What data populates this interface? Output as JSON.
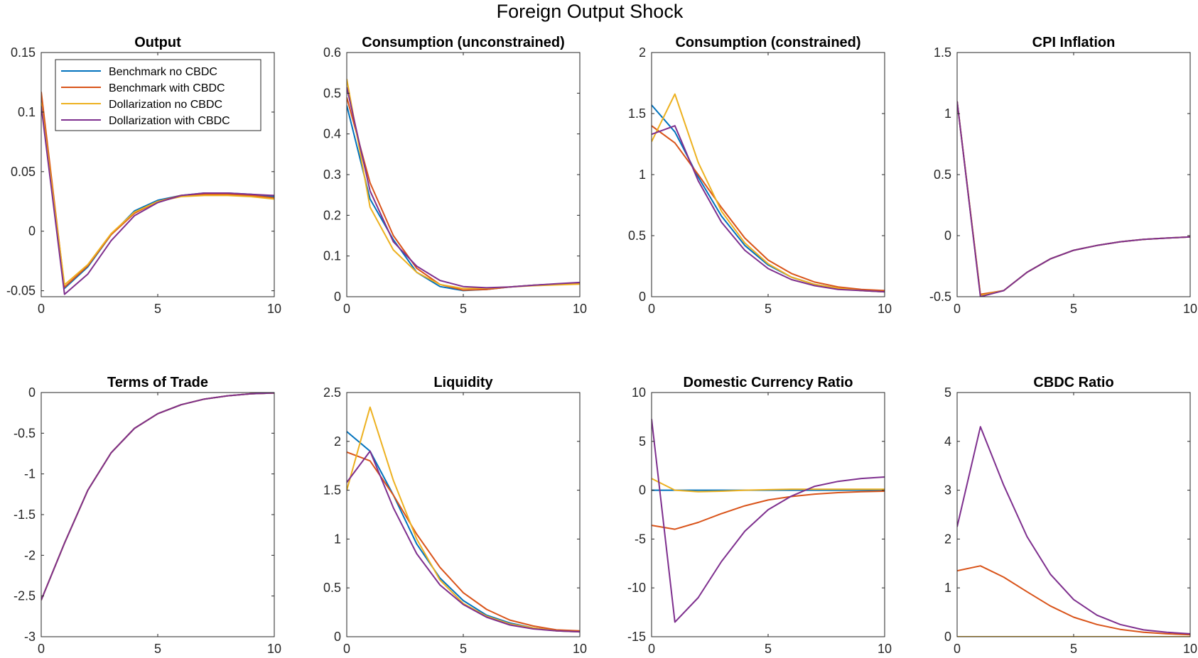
{
  "figure": {
    "title": "Foreign Output Shock"
  },
  "legend": {
    "entries": [
      "Benchmark no CBDC",
      "Benchmark with CBDC",
      "Dollarization no CBDC",
      "Dollarization with CBDC"
    ]
  },
  "series_colors": [
    "#0072BD",
    "#D95319",
    "#EDB120",
    "#7E2F8E"
  ],
  "chart_data": [
    {
      "type": "line",
      "title": "Output",
      "x": [
        0,
        1,
        2,
        3,
        4,
        5,
        6,
        7,
        8,
        9,
        10
      ],
      "xlim": [
        0,
        10
      ],
      "xticks": [
        0,
        5,
        10
      ],
      "ylim": [
        -0.055,
        0.15
      ],
      "yticks": [
        -0.05,
        0,
        0.05,
        0.1,
        0.15
      ],
      "ytick_labels": [
        "-0.05",
        "0",
        "0.05",
        "0.1",
        "0.15"
      ],
      "legend": "top-left",
      "series": [
        {
          "name": "Benchmark no CBDC",
          "values": [
            0.11,
            -0.048,
            -0.03,
            -0.003,
            0.017,
            0.026,
            0.03,
            0.032,
            0.032,
            0.031,
            0.029
          ]
        },
        {
          "name": "Benchmark with CBDC",
          "values": [
            0.117,
            -0.047,
            -0.029,
            -0.003,
            0.015,
            0.025,
            0.03,
            0.031,
            0.031,
            0.03,
            0.028
          ]
        },
        {
          "name": "Dollarization no CBDC",
          "values": [
            0.108,
            -0.045,
            -0.028,
            -0.002,
            0.016,
            0.025,
            0.029,
            0.03,
            0.03,
            0.029,
            0.027
          ]
        },
        {
          "name": "Dollarization with CBDC",
          "values": [
            0.105,
            -0.053,
            -0.036,
            -0.008,
            0.013,
            0.024,
            0.03,
            0.032,
            0.032,
            0.031,
            0.03
          ]
        }
      ]
    },
    {
      "type": "line",
      "title": "Consumption (unconstrained)",
      "x": [
        0,
        1,
        2,
        3,
        4,
        5,
        6,
        7,
        8,
        9,
        10
      ],
      "xlim": [
        0,
        10
      ],
      "xticks": [
        0,
        5,
        10
      ],
      "ylim": [
        0,
        0.6
      ],
      "yticks": [
        0,
        0.1,
        0.2,
        0.3,
        0.4,
        0.5,
        0.6
      ],
      "ytick_labels": [
        "0",
        "0.1",
        "0.2",
        "0.3",
        "0.4",
        "0.5",
        "0.6"
      ],
      "series": [
        {
          "name": "Benchmark no CBDC",
          "values": [
            0.47,
            0.24,
            0.14,
            0.06,
            0.025,
            0.015,
            0.018,
            0.024,
            0.028,
            0.031,
            0.033
          ]
        },
        {
          "name": "Benchmark with CBDC",
          "values": [
            0.49,
            0.28,
            0.15,
            0.07,
            0.03,
            0.016,
            0.018,
            0.024,
            0.028,
            0.031,
            0.033
          ]
        },
        {
          "name": "Dollarization no CBDC",
          "values": [
            0.535,
            0.22,
            0.115,
            0.06,
            0.03,
            0.02,
            0.021,
            0.024,
            0.027,
            0.029,
            0.031
          ]
        },
        {
          "name": "Dollarization with CBDC",
          "values": [
            0.515,
            0.26,
            0.135,
            0.075,
            0.04,
            0.025,
            0.022,
            0.024,
            0.028,
            0.032,
            0.035
          ]
        }
      ]
    },
    {
      "type": "line",
      "title": "Consumption (constrained)",
      "x": [
        0,
        1,
        2,
        3,
        4,
        5,
        6,
        7,
        8,
        9,
        10
      ],
      "xlim": [
        0,
        10
      ],
      "xticks": [
        0,
        5,
        10
      ],
      "ylim": [
        0,
        2
      ],
      "yticks": [
        0,
        0.5,
        1,
        1.5,
        2
      ],
      "ytick_labels": [
        "0",
        "0.5",
        "1",
        "1.5",
        "2"
      ],
      "series": [
        {
          "name": "Benchmark no CBDC",
          "values": [
            1.57,
            1.35,
            0.98,
            0.66,
            0.42,
            0.26,
            0.16,
            0.1,
            0.07,
            0.05,
            0.04
          ]
        },
        {
          "name": "Benchmark with CBDC",
          "values": [
            1.4,
            1.26,
            1.0,
            0.73,
            0.48,
            0.3,
            0.19,
            0.12,
            0.08,
            0.06,
            0.05
          ]
        },
        {
          "name": "Dollarization no CBDC",
          "values": [
            1.27,
            1.66,
            1.1,
            0.7,
            0.44,
            0.27,
            0.16,
            0.1,
            0.07,
            0.05,
            0.04
          ]
        },
        {
          "name": "Dollarization with CBDC",
          "values": [
            1.33,
            1.4,
            0.95,
            0.61,
            0.38,
            0.23,
            0.14,
            0.09,
            0.06,
            0.05,
            0.04
          ]
        }
      ]
    },
    {
      "type": "line",
      "title": "CPI Inflation",
      "x": [
        0,
        1,
        2,
        3,
        4,
        5,
        6,
        7,
        8,
        9,
        10
      ],
      "xlim": [
        0,
        10
      ],
      "xticks": [
        0,
        5,
        10
      ],
      "ylim": [
        -0.5,
        1.5
      ],
      "yticks": [
        -0.5,
        0,
        0.5,
        1,
        1.5
      ],
      "ytick_labels": [
        "-0.5",
        "0",
        "0.5",
        "1",
        "1.5"
      ],
      "series": [
        {
          "name": "Benchmark no CBDC",
          "values": [
            1.1,
            -0.49,
            -0.45,
            -0.3,
            -0.19,
            -0.12,
            -0.08,
            -0.05,
            -0.03,
            -0.02,
            -0.01
          ]
        },
        {
          "name": "Benchmark with CBDC",
          "values": [
            1.1,
            -0.48,
            -0.45,
            -0.3,
            -0.19,
            -0.12,
            -0.08,
            -0.05,
            -0.03,
            -0.02,
            -0.01
          ]
        },
        {
          "name": "Dollarization no CBDC",
          "values": [
            1.1,
            -0.49,
            -0.45,
            -0.3,
            -0.19,
            -0.12,
            -0.08,
            -0.05,
            -0.03,
            -0.02,
            -0.01
          ]
        },
        {
          "name": "Dollarization with CBDC",
          "values": [
            1.1,
            -0.5,
            -0.45,
            -0.3,
            -0.19,
            -0.12,
            -0.08,
            -0.05,
            -0.03,
            -0.02,
            -0.01
          ]
        }
      ]
    },
    {
      "type": "line",
      "title": "Terms of Trade",
      "x": [
        0,
        1,
        2,
        3,
        4,
        5,
        6,
        7,
        8,
        9,
        10
      ],
      "xlim": [
        0,
        10
      ],
      "xticks": [
        0,
        5,
        10
      ],
      "ylim": [
        -3,
        0
      ],
      "yticks": [
        -3,
        -2.5,
        -2,
        -1.5,
        -1,
        -0.5,
        0
      ],
      "ytick_labels": [
        "-3",
        "-2.5",
        "-2",
        "-1.5",
        "-1",
        "-0.5",
        "0"
      ],
      "series": [
        {
          "name": "Benchmark no CBDC",
          "values": [
            -2.55,
            -1.85,
            -1.2,
            -0.74,
            -0.44,
            -0.26,
            -0.15,
            -0.08,
            -0.04,
            -0.015,
            -0.005
          ]
        },
        {
          "name": "Benchmark with CBDC",
          "values": [
            -2.55,
            -1.85,
            -1.2,
            -0.74,
            -0.44,
            -0.26,
            -0.15,
            -0.08,
            -0.04,
            -0.015,
            -0.005
          ]
        },
        {
          "name": "Dollarization no CBDC",
          "values": [
            -2.55,
            -1.85,
            -1.2,
            -0.74,
            -0.44,
            -0.26,
            -0.15,
            -0.08,
            -0.04,
            -0.015,
            -0.005
          ]
        },
        {
          "name": "Dollarization with CBDC",
          "values": [
            -2.55,
            -1.85,
            -1.2,
            -0.74,
            -0.44,
            -0.26,
            -0.15,
            -0.08,
            -0.04,
            -0.015,
            -0.005
          ]
        }
      ]
    },
    {
      "type": "line",
      "title": "Liquidity",
      "x": [
        0,
        1,
        2,
        3,
        4,
        5,
        6,
        7,
        8,
        9,
        10
      ],
      "xlim": [
        0,
        10
      ],
      "xticks": [
        0,
        5,
        10
      ],
      "ylim": [
        0,
        2.5
      ],
      "yticks": [
        0,
        0.5,
        1,
        1.5,
        2,
        2.5
      ],
      "ytick_labels": [
        "0",
        "0.5",
        "1",
        "1.5",
        "2",
        "2.5"
      ],
      "series": [
        {
          "name": "Benchmark no CBDC",
          "values": [
            2.1,
            1.9,
            1.45,
            0.95,
            0.6,
            0.37,
            0.22,
            0.14,
            0.09,
            0.06,
            0.05
          ]
        },
        {
          "name": "Benchmark with CBDC",
          "values": [
            1.89,
            1.8,
            1.45,
            1.05,
            0.71,
            0.45,
            0.28,
            0.17,
            0.11,
            0.07,
            0.06
          ]
        },
        {
          "name": "Dollarization no CBDC",
          "values": [
            1.5,
            2.35,
            1.6,
            1.0,
            0.58,
            0.34,
            0.21,
            0.13,
            0.09,
            0.06,
            0.05
          ]
        },
        {
          "name": "Dollarization with CBDC",
          "values": [
            1.58,
            1.9,
            1.32,
            0.85,
            0.53,
            0.33,
            0.2,
            0.12,
            0.08,
            0.06,
            0.05
          ]
        }
      ]
    },
    {
      "type": "line",
      "title": "Domestic Currency Ratio",
      "x": [
        0,
        1,
        2,
        3,
        4,
        5,
        6,
        7,
        8,
        9,
        10
      ],
      "xlim": [
        0,
        10
      ],
      "xticks": [
        0,
        5,
        10
      ],
      "ylim": [
        -15,
        10
      ],
      "yticks": [
        -15,
        -10,
        -5,
        0,
        5,
        10
      ],
      "ytick_labels": [
        "-15",
        "-10",
        "-5",
        "0",
        "5",
        "10"
      ],
      "series": [
        {
          "name": "Benchmark no CBDC",
          "values": [
            0,
            0,
            0,
            0,
            0,
            0,
            0,
            0,
            0,
            0,
            0
          ]
        },
        {
          "name": "Benchmark with CBDC",
          "values": [
            -3.6,
            -4.0,
            -3.3,
            -2.4,
            -1.6,
            -1.0,
            -0.65,
            -0.4,
            -0.25,
            -0.15,
            -0.1
          ]
        },
        {
          "name": "Dollarization no CBDC",
          "values": [
            1.2,
            0.0,
            -0.15,
            -0.1,
            0.0,
            0.05,
            0.1,
            0.1,
            0.1,
            0.1,
            0.1
          ]
        },
        {
          "name": "Dollarization with CBDC",
          "values": [
            7.3,
            -13.5,
            -11.0,
            -7.3,
            -4.2,
            -2.0,
            -0.6,
            0.4,
            0.9,
            1.2,
            1.35
          ]
        }
      ]
    },
    {
      "type": "line",
      "title": "CBDC Ratio",
      "x": [
        0,
        1,
        2,
        3,
        4,
        5,
        6,
        7,
        8,
        9,
        10
      ],
      "xlim": [
        0,
        10
      ],
      "xticks": [
        0,
        5,
        10
      ],
      "ylim": [
        0,
        5
      ],
      "yticks": [
        0,
        1,
        2,
        3,
        4,
        5
      ],
      "ytick_labels": [
        "0",
        "1",
        "2",
        "3",
        "4",
        "5"
      ],
      "series": [
        {
          "name": "Benchmark no CBDC",
          "values": [
            0,
            0,
            0,
            0,
            0,
            0,
            0,
            0,
            0,
            0,
            0
          ]
        },
        {
          "name": "Benchmark with CBDC",
          "values": [
            1.35,
            1.45,
            1.22,
            0.92,
            0.63,
            0.4,
            0.25,
            0.15,
            0.09,
            0.06,
            0.04
          ]
        },
        {
          "name": "Dollarization no CBDC",
          "values": [
            0,
            0,
            0,
            0,
            0,
            0,
            0,
            0,
            0,
            0,
            0
          ]
        },
        {
          "name": "Dollarization with CBDC",
          "values": [
            2.25,
            4.3,
            3.1,
            2.05,
            1.28,
            0.76,
            0.44,
            0.25,
            0.14,
            0.09,
            0.06
          ]
        }
      ]
    }
  ]
}
